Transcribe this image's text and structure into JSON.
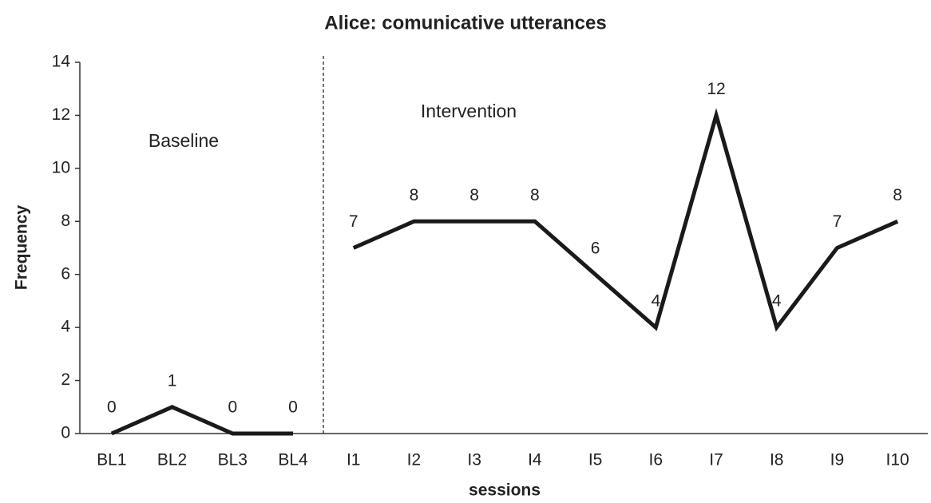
{
  "chart_data": {
    "type": "line",
    "title": "Alice: comunicative utterances",
    "x_label": "sessions",
    "y_label": "Frequency",
    "categories": [
      "BL1",
      "BL2",
      "BL3",
      "BL4",
      "I1",
      "I2",
      "I3",
      "I4",
      "I5",
      "I6",
      "I7",
      "I8",
      "I9",
      "I10"
    ],
    "series": [
      {
        "color": "#1a1a1a",
        "values": [
          0,
          1,
          0,
          0,
          null,
          null,
          null,
          null,
          null,
          null,
          null,
          null,
          null,
          null
        ]
      },
      {
        "color": "#1a1a1a",
        "values": [
          null,
          null,
          null,
          null,
          7,
          8,
          8,
          8,
          6,
          4,
          12,
          4,
          7,
          8
        ]
      }
    ],
    "annotations": [
      "Baseline",
      "Intervention"
    ],
    "ylim": [
      0,
      14
    ],
    "yticks": [
      0,
      2,
      4,
      6,
      8,
      10,
      12,
      14
    ],
    "grid": false
  }
}
